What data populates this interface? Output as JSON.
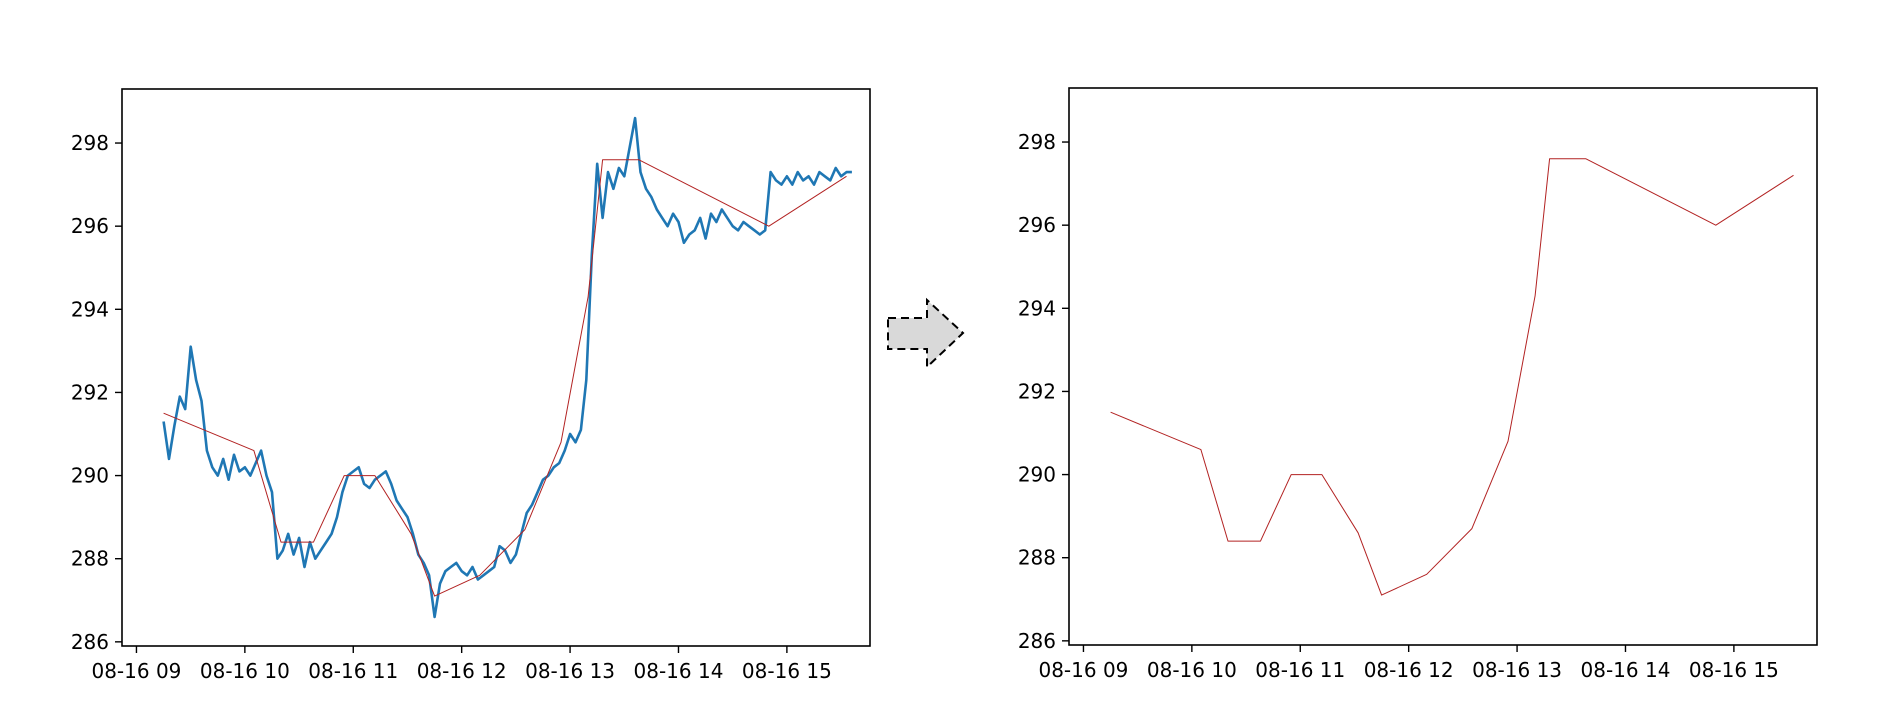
{
  "colors": {
    "raw_series": "#1f77b4",
    "simplified_series": "#b22222",
    "arrow_fill": "#d9d9d9",
    "axes": "#000000",
    "background": "#ffffff"
  },
  "arrow": {
    "icon": "dashed-right-arrow-icon"
  },
  "chart_data": [
    {
      "type": "line",
      "title": "",
      "xlabel": "",
      "ylabel": "",
      "x_is_time": true,
      "xlim": [
        "08-16 08:52",
        "08-16 15:46"
      ],
      "ylim": [
        285.9,
        299.3
      ],
      "xticks": [
        "08-16 09",
        "08-16 10",
        "08-16 11",
        "08-16 12",
        "08-16 13",
        "08-16 14",
        "08-16 15"
      ],
      "yticks": [
        286,
        288,
        290,
        292,
        294,
        296,
        298
      ],
      "grid": false,
      "legend": "none",
      "series": [
        {
          "color": "#1f77b4",
          "x": [
            "08-16 09:15",
            "08-16 09:18",
            "08-16 09:21",
            "08-16 09:24",
            "08-16 09:27",
            "08-16 09:30",
            "08-16 09:33",
            "08-16 09:36",
            "08-16 09:39",
            "08-16 09:42",
            "08-16 09:45",
            "08-16 09:48",
            "08-16 09:51",
            "08-16 09:54",
            "08-16 09:57",
            "08-16 10:00",
            "08-16 10:03",
            "08-16 10:06",
            "08-16 10:09",
            "08-16 10:12",
            "08-16 10:15",
            "08-16 10:18",
            "08-16 10:21",
            "08-16 10:24",
            "08-16 10:27",
            "08-16 10:30",
            "08-16 10:33",
            "08-16 10:36",
            "08-16 10:39",
            "08-16 10:42",
            "08-16 10:45",
            "08-16 10:48",
            "08-16 10:51",
            "08-16 10:54",
            "08-16 10:57",
            "08-16 11:00",
            "08-16 11:03",
            "08-16 11:06",
            "08-16 11:09",
            "08-16 11:12",
            "08-16 11:15",
            "08-16 11:18",
            "08-16 11:21",
            "08-16 11:24",
            "08-16 11:27",
            "08-16 11:30",
            "08-16 11:33",
            "08-16 11:36",
            "08-16 11:39",
            "08-16 11:42",
            "08-16 11:45",
            "08-16 11:48",
            "08-16 11:51",
            "08-16 11:54",
            "08-16 11:57",
            "08-16 12:00",
            "08-16 12:03",
            "08-16 12:06",
            "08-16 12:09",
            "08-16 12:12",
            "08-16 12:15",
            "08-16 12:18",
            "08-16 12:21",
            "08-16 12:24",
            "08-16 12:27",
            "08-16 12:30",
            "08-16 12:33",
            "08-16 12:36",
            "08-16 12:39",
            "08-16 12:42",
            "08-16 12:45",
            "08-16 12:48",
            "08-16 12:51",
            "08-16 12:54",
            "08-16 12:57",
            "08-16 13:00",
            "08-16 13:03",
            "08-16 13:06",
            "08-16 13:09",
            "08-16 13:12",
            "08-16 13:15",
            "08-16 13:18",
            "08-16 13:21",
            "08-16 13:24",
            "08-16 13:27",
            "08-16 13:30",
            "08-16 13:33",
            "08-16 13:36",
            "08-16 13:39",
            "08-16 13:42",
            "08-16 13:45",
            "08-16 13:48",
            "08-16 13:51",
            "08-16 13:54",
            "08-16 13:57",
            "08-16 14:00",
            "08-16 14:03",
            "08-16 14:06",
            "08-16 14:09",
            "08-16 14:12",
            "08-16 14:15",
            "08-16 14:18",
            "08-16 14:21",
            "08-16 14:24",
            "08-16 14:27",
            "08-16 14:30",
            "08-16 14:33",
            "08-16 14:36",
            "08-16 14:39",
            "08-16 14:42",
            "08-16 14:45",
            "08-16 14:48",
            "08-16 14:51",
            "08-16 14:54",
            "08-16 14:57",
            "08-16 15:00",
            "08-16 15:03",
            "08-16 15:06",
            "08-16 15:09",
            "08-16 15:12",
            "08-16 15:15",
            "08-16 15:18",
            "08-16 15:21",
            "08-16 15:24",
            "08-16 15:27",
            "08-16 15:30",
            "08-16 15:33",
            "08-16 15:36"
          ],
          "y": [
            291.3,
            290.4,
            291.2,
            291.9,
            291.6,
            293.1,
            292.3,
            291.8,
            290.6,
            290.2,
            290.0,
            290.4,
            289.9,
            290.5,
            290.1,
            290.2,
            290.0,
            290.3,
            290.6,
            290.0,
            289.6,
            288.0,
            288.2,
            288.6,
            288.1,
            288.5,
            287.8,
            288.4,
            288.0,
            288.2,
            288.4,
            288.6,
            289.0,
            289.6,
            290.0,
            290.1,
            290.2,
            289.8,
            289.7,
            289.9,
            290.0,
            290.1,
            289.8,
            289.4,
            289.2,
            289.0,
            288.6,
            288.1,
            287.9,
            287.6,
            286.6,
            287.4,
            287.7,
            287.8,
            287.9,
            287.7,
            287.6,
            287.8,
            287.5,
            287.6,
            287.7,
            287.8,
            288.3,
            288.2,
            287.9,
            288.1,
            288.6,
            289.1,
            289.3,
            289.6,
            289.9,
            290.0,
            290.2,
            290.3,
            290.6,
            291.0,
            290.8,
            291.1,
            292.3,
            295.3,
            297.5,
            296.2,
            297.3,
            296.9,
            297.4,
            297.2,
            297.9,
            298.6,
            297.3,
            296.9,
            296.7,
            296.4,
            296.2,
            296.0,
            296.3,
            296.1,
            295.6,
            295.8,
            295.9,
            296.2,
            295.7,
            296.3,
            296.1,
            296.4,
            296.2,
            296.0,
            295.9,
            296.1,
            296.0,
            295.9,
            295.8,
            295.9,
            297.3,
            297.1,
            297.0,
            297.2,
            297.0,
            297.3,
            297.1,
            297.2,
            297.0,
            297.3,
            297.2,
            297.1,
            297.4,
            297.2,
            297.3,
            297.3
          ]
        },
        {
          "color": "#b22222",
          "x": [
            "08-16 09:15",
            "08-16 10:05",
            "08-16 10:20",
            "08-16 10:38",
            "08-16 10:55",
            "08-16 11:12",
            "08-16 11:32",
            "08-16 11:45",
            "08-16 12:10",
            "08-16 12:35",
            "08-16 12:55",
            "08-16 13:10",
            "08-16 13:18",
            "08-16 13:38",
            "08-16 14:50",
            "08-16 15:33"
          ],
          "y": [
            291.5,
            290.6,
            288.4,
            288.4,
            290.0,
            290.0,
            288.6,
            287.1,
            287.6,
            288.7,
            290.8,
            294.3,
            297.6,
            297.6,
            296.0,
            297.2
          ]
        }
      ]
    },
    {
      "type": "line",
      "title": "",
      "xlabel": "",
      "ylabel": "",
      "x_is_time": true,
      "xlim": [
        "08-16 08:52",
        "08-16 15:46"
      ],
      "ylim": [
        285.9,
        299.3
      ],
      "xticks": [
        "08-16 09",
        "08-16 10",
        "08-16 11",
        "08-16 12",
        "08-16 13",
        "08-16 14",
        "08-16 15"
      ],
      "yticks": [
        286,
        288,
        290,
        292,
        294,
        296,
        298
      ],
      "grid": false,
      "legend": "none",
      "series": [
        {
          "color": "#b22222",
          "x": [
            "08-16 09:15",
            "08-16 10:05",
            "08-16 10:20",
            "08-16 10:38",
            "08-16 10:55",
            "08-16 11:12",
            "08-16 11:32",
            "08-16 11:45",
            "08-16 12:10",
            "08-16 12:35",
            "08-16 12:55",
            "08-16 13:10",
            "08-16 13:18",
            "08-16 13:38",
            "08-16 14:50",
            "08-16 15:33"
          ],
          "y": [
            291.5,
            290.6,
            288.4,
            288.4,
            290.0,
            290.0,
            288.6,
            287.1,
            287.6,
            288.7,
            290.8,
            294.3,
            297.6,
            297.6,
            296.0,
            297.2
          ]
        }
      ]
    }
  ]
}
